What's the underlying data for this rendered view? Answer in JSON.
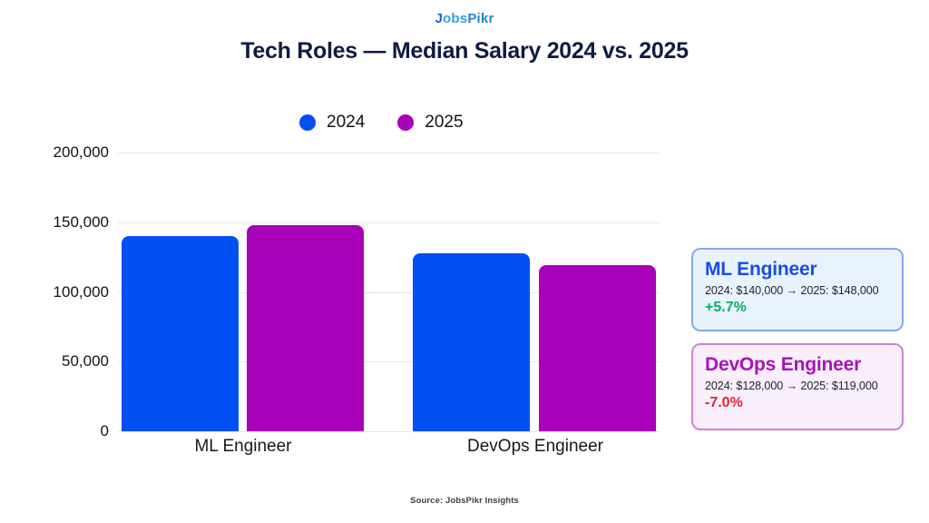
{
  "logo": {
    "part_j": "J",
    "part_obs": "obs",
    "part_pikr": "Pikr"
  },
  "header": {
    "title": "Tech Roles — Median Salary 2024 vs. 2025"
  },
  "chart_data": {
    "type": "bar",
    "title": "Tech Roles — Median Salary 2024 vs. 2025",
    "categories": [
      "ML Engineer",
      "DevOps Engineer"
    ],
    "series": [
      {
        "name": "2024",
        "color": "#0350f2",
        "values": [
          140000,
          128000
        ]
      },
      {
        "name": "2025",
        "color": "#a802b8",
        "values": [
          148000,
          119000
        ]
      }
    ],
    "xlabel": "",
    "ylabel": "",
    "ylim": [
      0,
      200000
    ],
    "yticks": [
      0,
      50000,
      100000,
      150000,
      200000
    ],
    "ytick_labels": [
      "0",
      "50,000",
      "100,000",
      "150,000",
      "200,000"
    ],
    "grid": true,
    "legend_position": "top-center",
    "gridline_color": "#e7e7e9"
  },
  "cards": [
    {
      "title": "ML Engineer",
      "detail": "2024: $140,000 → 2025: $148,000",
      "delta": "+5.7%",
      "title_color": "#1a4ce0",
      "delta_color": "#0fae5f",
      "bg": "#e9f3fd",
      "border": "#84a9ea"
    },
    {
      "title": "DevOps Engineer",
      "detail": "2024: $128,000 → 2025: $119,000",
      "delta": "-7.0%",
      "title_color": "#a615b8",
      "delta_color": "#e52424",
      "bg": "#f9eefb",
      "border": "#cb83d8"
    }
  ],
  "footer": {
    "source": "Source: JobsPikr Insights"
  }
}
